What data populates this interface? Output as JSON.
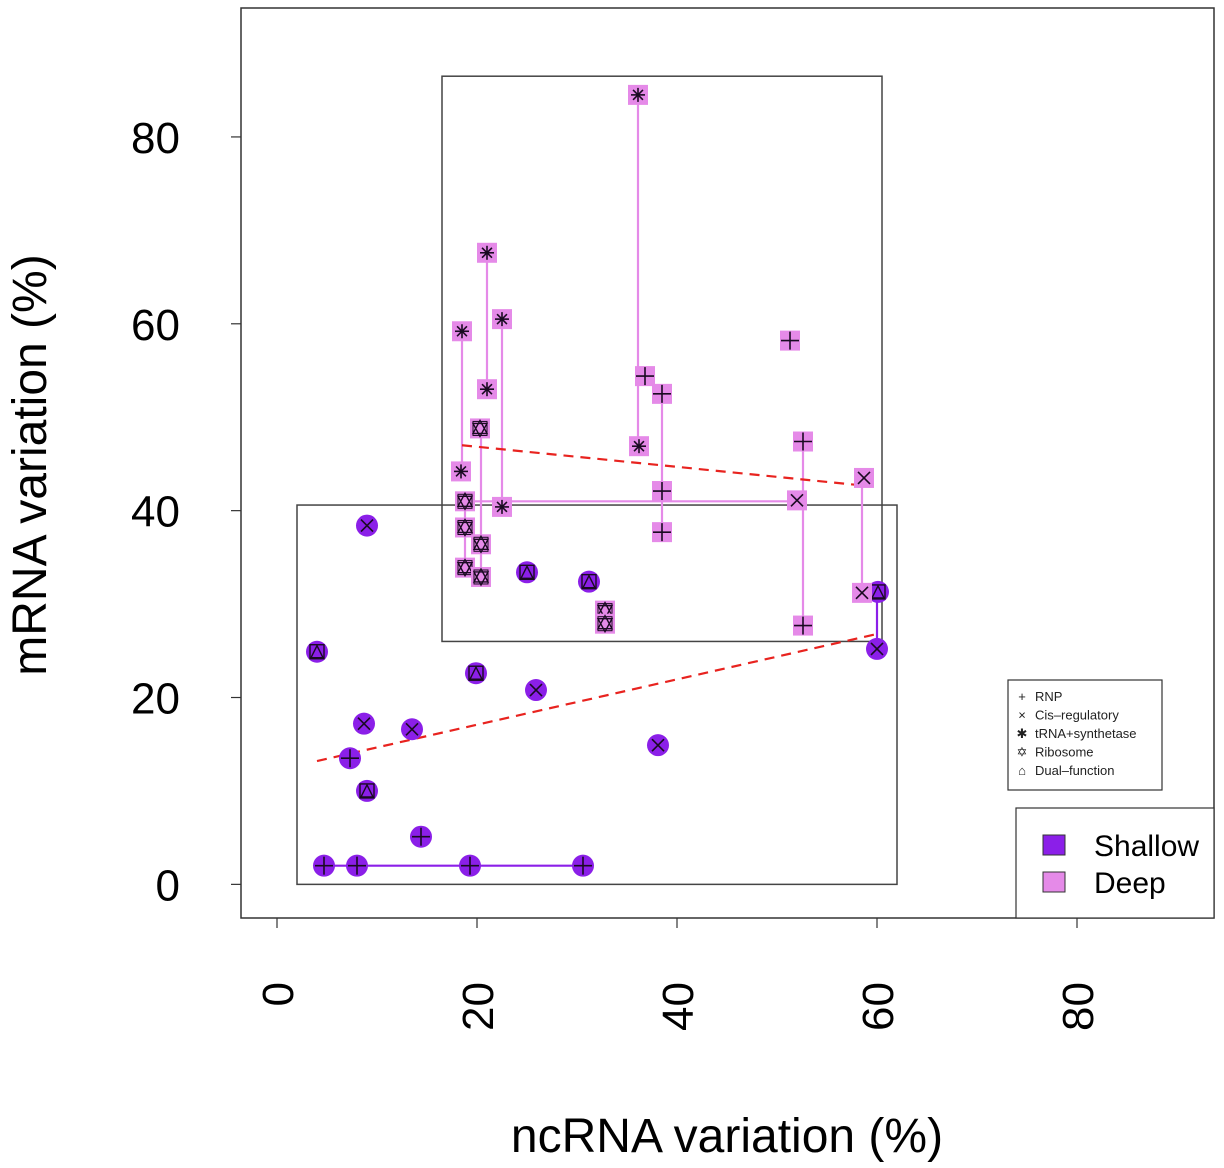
{
  "chart_data": {
    "type": "scatter",
    "title": "",
    "xlabel": "ncRNA variation (%)",
    "ylabel": "mRNA variation (%)",
    "xlim": [
      -3.6,
      93.7
    ],
    "ylim": [
      -3.6,
      93.8
    ],
    "xticks": [
      0,
      20,
      40,
      60,
      80
    ],
    "yticks": [
      0,
      20,
      40,
      60,
      80
    ],
    "grid": false,
    "colors": {
      "Shallow": "#8b1fe8",
      "Deep": "#e58ae8",
      "trend": "#e8231f"
    },
    "series": [
      {
        "name": "Shallow",
        "marker": "circle",
        "points": [
          {
            "x": 9.0,
            "y": 38.4,
            "type": "Cis-regulatory"
          },
          {
            "x": 4.0,
            "y": 24.9,
            "type": "Dual-function"
          },
          {
            "x": 19.9,
            "y": 22.6,
            "type": "Dual-function"
          },
          {
            "x": 25.9,
            "y": 20.8,
            "type": "Cis-regulatory"
          },
          {
            "x": 8.7,
            "y": 17.2,
            "type": "Cis-regulatory"
          },
          {
            "x": 13.5,
            "y": 16.6,
            "type": "Cis-regulatory"
          },
          {
            "x": 7.3,
            "y": 13.5,
            "type": "RNP"
          },
          {
            "x": 9.0,
            "y": 10.0,
            "type": "Dual-function"
          },
          {
            "x": 14.4,
            "y": 5.1,
            "type": "RNP"
          },
          {
            "x": 4.7,
            "y": 2.0,
            "type": "RNP"
          },
          {
            "x": 8.0,
            "y": 2.0,
            "type": "RNP"
          },
          {
            "x": 19.3,
            "y": 2.0,
            "type": "RNP"
          },
          {
            "x": 30.6,
            "y": 2.0,
            "type": "RNP"
          },
          {
            "x": 25.0,
            "y": 33.4,
            "type": "Dual-function"
          },
          {
            "x": 31.2,
            "y": 32.4,
            "type": "Dual-function"
          },
          {
            "x": 38.1,
            "y": 14.9,
            "type": "Cis-regulatory"
          },
          {
            "x": 60.0,
            "y": 25.2,
            "type": "Cis-regulatory"
          },
          {
            "x": 60.1,
            "y": 31.3,
            "type": "Dual-function"
          }
        ],
        "segments": [
          {
            "x1": 4.7,
            "y1": 2.0,
            "x2": 30.6,
            "y2": 2.0
          },
          {
            "x1": 60.0,
            "y1": 25.2,
            "x2": 60.0,
            "y2": 31.3
          }
        ],
        "box": {
          "x1": 2.0,
          "y1": 0.0,
          "x2": 62.0,
          "y2": 40.6
        },
        "trend": {
          "x1": 4.0,
          "y1": 13.2,
          "x2": 60.0,
          "y2": 26.8
        }
      },
      {
        "name": "Deep",
        "marker": "square",
        "points": [
          {
            "x": 36.1,
            "y": 84.5,
            "type": "tRNA+synthetase"
          },
          {
            "x": 21.0,
            "y": 67.6,
            "type": "tRNA+synthetase"
          },
          {
            "x": 22.5,
            "y": 60.5,
            "type": "tRNA+synthetase"
          },
          {
            "x": 18.5,
            "y": 59.2,
            "type": "tRNA+synthetase"
          },
          {
            "x": 21.0,
            "y": 53.0,
            "type": "tRNA+synthetase"
          },
          {
            "x": 18.4,
            "y": 44.2,
            "type": "tRNA+synthetase"
          },
          {
            "x": 36.2,
            "y": 46.9,
            "type": "tRNA+synthetase"
          },
          {
            "x": 22.5,
            "y": 40.4,
            "type": "tRNA+synthetase"
          },
          {
            "x": 51.3,
            "y": 58.2,
            "type": "RNP"
          },
          {
            "x": 36.8,
            "y": 54.4,
            "type": "RNP"
          },
          {
            "x": 38.5,
            "y": 52.5,
            "type": "RNP"
          },
          {
            "x": 52.6,
            "y": 47.4,
            "type": "RNP"
          },
          {
            "x": 38.5,
            "y": 42.1,
            "type": "RNP"
          },
          {
            "x": 38.5,
            "y": 37.7,
            "type": "RNP"
          },
          {
            "x": 52.6,
            "y": 27.7,
            "type": "RNP"
          },
          {
            "x": 58.7,
            "y": 43.5,
            "type": "Cis-regulatory"
          },
          {
            "x": 52.0,
            "y": 41.1,
            "type": "Cis-regulatory"
          },
          {
            "x": 58.5,
            "y": 31.2,
            "type": "Cis-regulatory"
          },
          {
            "x": 20.3,
            "y": 48.8,
            "type": "Ribosome"
          },
          {
            "x": 18.8,
            "y": 41.0,
            "type": "Ribosome"
          },
          {
            "x": 18.8,
            "y": 38.2,
            "type": "Ribosome"
          },
          {
            "x": 20.4,
            "y": 36.4,
            "type": "Ribosome"
          },
          {
            "x": 18.8,
            "y": 33.9,
            "type": "Ribosome"
          },
          {
            "x": 20.4,
            "y": 32.9,
            "type": "Ribosome"
          },
          {
            "x": 32.8,
            "y": 29.3,
            "type": "Ribosome"
          },
          {
            "x": 32.8,
            "y": 27.9,
            "type": "Ribosome"
          }
        ],
        "segments": [
          {
            "x1": 18.5,
            "y1": 59.2,
            "x2": 18.5,
            "y2": 44.2
          },
          {
            "x1": 18.8,
            "y1": 41.0,
            "x2": 18.8,
            "y2": 33.9
          },
          {
            "x1": 20.4,
            "y1": 48.8,
            "x2": 20.4,
            "y2": 32.9
          },
          {
            "x1": 21.0,
            "y1": 67.6,
            "x2": 21.0,
            "y2": 53.0
          },
          {
            "x1": 22.5,
            "y1": 60.5,
            "x2": 22.5,
            "y2": 40.4
          },
          {
            "x1": 36.1,
            "y1": 84.5,
            "x2": 36.1,
            "y2": 46.9
          },
          {
            "x1": 38.5,
            "y1": 52.5,
            "x2": 38.5,
            "y2": 37.7
          },
          {
            "x1": 52.6,
            "y1": 47.4,
            "x2": 52.6,
            "y2": 27.7
          },
          {
            "x1": 58.5,
            "y1": 43.5,
            "x2": 58.5,
            "y2": 31.2
          },
          {
            "x1": 18.8,
            "y1": 41.0,
            "x2": 52.0,
            "y2": 41.0
          }
        ],
        "box": {
          "x1": 16.5,
          "y1": 26.0,
          "x2": 60.5,
          "y2": 86.5
        },
        "trend": {
          "x1": 18.5,
          "y1": 47.0,
          "x2": 58.5,
          "y2": 42.7
        }
      }
    ],
    "legend_types": {
      "placement": "right",
      "entries": [
        {
          "symbol": "+",
          "label": "RNP"
        },
        {
          "symbol": "×",
          "label": "Cis–regulatory"
        },
        {
          "symbol": "✱",
          "label": "tRNA+synthetase"
        },
        {
          "symbol": "✡",
          "label": "Ribosome"
        },
        {
          "symbol": "⌂",
          "label": "Dual–function"
        }
      ]
    },
    "legend_depth": {
      "placement": "bottom-right",
      "entries": [
        {
          "label": "Shallow",
          "color": "#8b1fe8"
        },
        {
          "label": "Deep",
          "color": "#e58ae8"
        }
      ]
    }
  }
}
